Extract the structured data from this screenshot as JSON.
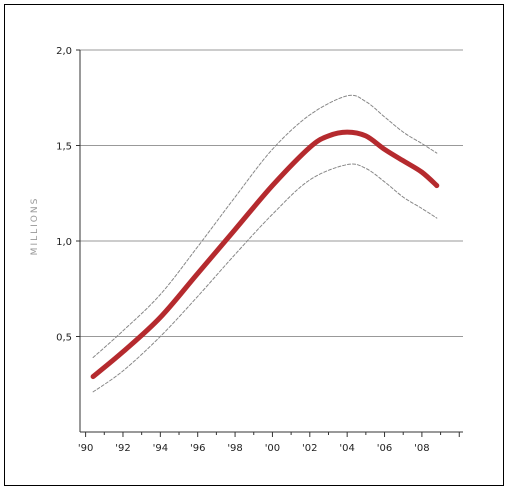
{
  "chart_data": {
    "type": "line",
    "title": "",
    "xlabel": "",
    "ylabel": "MILLIONS",
    "x_tick_labels": [
      "'90",
      "'92",
      "'94",
      "'96",
      "'98",
      "'00",
      "'02",
      "'04",
      "'06",
      "'08"
    ],
    "x_tick_years": [
      1990,
      1992,
      1994,
      1996,
      1998,
      2000,
      2002,
      2004,
      2006,
      2008
    ],
    "y_tick_labels": [
      "0,5",
      "1,0",
      "1,5",
      "2,0"
    ],
    "y_tick_values": [
      0.5,
      1.0,
      1.5,
      2.0
    ],
    "xlim": [
      1989.7,
      2010.2
    ],
    "ylim": [
      0,
      2.0
    ],
    "grid": "horizontal",
    "colors": {
      "main": "#b52a2e",
      "bounds": "#888888",
      "grid": "#999999"
    },
    "series": [
      {
        "role": "estimate",
        "x": [
          1990.4,
          1992,
          1994,
          1996,
          1998,
          2000,
          2002,
          2003,
          2004,
          2005,
          2006,
          2007,
          2008,
          2008.8
        ],
        "y": [
          0.29,
          0.42,
          0.6,
          0.83,
          1.06,
          1.29,
          1.49,
          1.55,
          1.57,
          1.55,
          1.48,
          1.42,
          1.36,
          1.29
        ]
      },
      {
        "role": "upper-bound",
        "x": [
          1990.4,
          1992,
          1994,
          1996,
          1998,
          2000,
          2002,
          2004,
          2005,
          2006,
          2007,
          2008,
          2008.8
        ],
        "y": [
          0.39,
          0.53,
          0.72,
          0.97,
          1.23,
          1.48,
          1.66,
          1.76,
          1.73,
          1.65,
          1.57,
          1.51,
          1.46
        ]
      },
      {
        "role": "lower-bound",
        "x": [
          1990.4,
          1992,
          1994,
          1996,
          1998,
          2000,
          2002,
          2004,
          2005,
          2006,
          2007,
          2008,
          2008.8
        ],
        "y": [
          0.21,
          0.32,
          0.5,
          0.71,
          0.93,
          1.14,
          1.32,
          1.4,
          1.38,
          1.31,
          1.23,
          1.17,
          1.12
        ]
      }
    ]
  }
}
